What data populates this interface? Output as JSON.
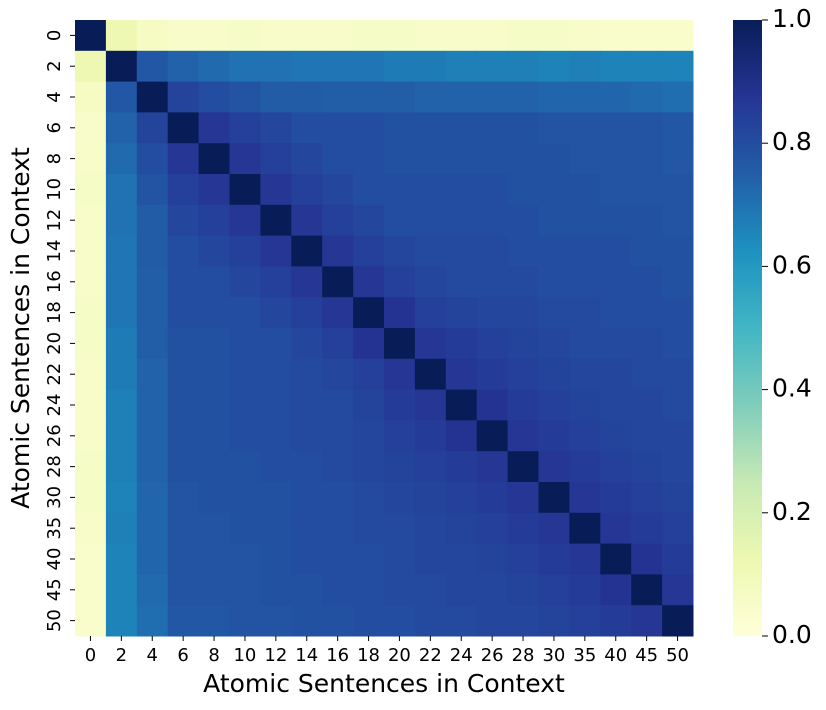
{
  "chart_data": {
    "type": "heatmap",
    "xlabel": "Atomic Sentences in Context",
    "ylabel": "Atomic Sentences in Context",
    "x_categories": [
      "0",
      "2",
      "4",
      "6",
      "8",
      "10",
      "12",
      "14",
      "16",
      "18",
      "20",
      "22",
      "24",
      "26",
      "28",
      "30",
      "35",
      "40",
      "45",
      "50"
    ],
    "y_categories": [
      "0",
      "2",
      "4",
      "6",
      "8",
      "10",
      "12",
      "14",
      "16",
      "18",
      "20",
      "22",
      "24",
      "26",
      "28",
      "30",
      "35",
      "40",
      "45",
      "50"
    ],
    "values": [
      [
        1.0,
        0.12,
        0.07,
        0.05,
        0.05,
        0.06,
        0.05,
        0.05,
        0.05,
        0.06,
        0.06,
        0.05,
        0.05,
        0.05,
        0.06,
        0.06,
        0.05,
        0.04,
        0.04,
        0.04
      ],
      [
        0.12,
        1.0,
        0.77,
        0.74,
        0.72,
        0.7,
        0.7,
        0.69,
        0.69,
        0.69,
        0.68,
        0.68,
        0.67,
        0.67,
        0.67,
        0.66,
        0.67,
        0.66,
        0.66,
        0.66
      ],
      [
        0.07,
        0.77,
        1.0,
        0.83,
        0.8,
        0.78,
        0.76,
        0.76,
        0.75,
        0.75,
        0.75,
        0.74,
        0.74,
        0.74,
        0.74,
        0.73,
        0.73,
        0.73,
        0.72,
        0.71
      ],
      [
        0.05,
        0.74,
        0.83,
        1.0,
        0.87,
        0.84,
        0.82,
        0.8,
        0.8,
        0.8,
        0.79,
        0.79,
        0.79,
        0.79,
        0.79,
        0.78,
        0.78,
        0.78,
        0.78,
        0.77
      ],
      [
        0.05,
        0.72,
        0.8,
        0.87,
        1.0,
        0.87,
        0.84,
        0.82,
        0.8,
        0.8,
        0.79,
        0.79,
        0.79,
        0.79,
        0.79,
        0.79,
        0.78,
        0.78,
        0.78,
        0.77
      ],
      [
        0.06,
        0.7,
        0.78,
        0.84,
        0.87,
        1.0,
        0.87,
        0.84,
        0.82,
        0.8,
        0.8,
        0.8,
        0.8,
        0.8,
        0.79,
        0.79,
        0.79,
        0.78,
        0.78,
        0.78
      ],
      [
        0.05,
        0.7,
        0.76,
        0.82,
        0.84,
        0.87,
        1.0,
        0.87,
        0.84,
        0.82,
        0.8,
        0.8,
        0.8,
        0.8,
        0.8,
        0.79,
        0.79,
        0.79,
        0.79,
        0.78
      ],
      [
        0.05,
        0.69,
        0.76,
        0.8,
        0.82,
        0.84,
        0.87,
        1.0,
        0.87,
        0.84,
        0.82,
        0.81,
        0.81,
        0.81,
        0.8,
        0.8,
        0.8,
        0.8,
        0.79,
        0.79
      ],
      [
        0.05,
        0.69,
        0.75,
        0.8,
        0.8,
        0.82,
        0.84,
        0.87,
        1.0,
        0.87,
        0.84,
        0.82,
        0.81,
        0.81,
        0.81,
        0.8,
        0.8,
        0.8,
        0.8,
        0.79
      ],
      [
        0.06,
        0.69,
        0.75,
        0.8,
        0.8,
        0.8,
        0.82,
        0.84,
        0.87,
        1.0,
        0.88,
        0.84,
        0.83,
        0.82,
        0.82,
        0.81,
        0.81,
        0.8,
        0.8,
        0.8
      ],
      [
        0.06,
        0.68,
        0.75,
        0.79,
        0.79,
        0.8,
        0.8,
        0.82,
        0.84,
        0.88,
        1.0,
        0.87,
        0.85,
        0.84,
        0.83,
        0.82,
        0.81,
        0.81,
        0.81,
        0.8
      ],
      [
        0.05,
        0.68,
        0.74,
        0.79,
        0.79,
        0.8,
        0.8,
        0.81,
        0.82,
        0.84,
        0.87,
        1.0,
        0.87,
        0.85,
        0.84,
        0.83,
        0.82,
        0.82,
        0.81,
        0.81
      ],
      [
        0.05,
        0.67,
        0.74,
        0.79,
        0.79,
        0.8,
        0.8,
        0.81,
        0.81,
        0.83,
        0.85,
        0.87,
        1.0,
        0.88,
        0.85,
        0.84,
        0.83,
        0.82,
        0.82,
        0.81
      ],
      [
        0.05,
        0.67,
        0.74,
        0.79,
        0.79,
        0.8,
        0.8,
        0.81,
        0.81,
        0.82,
        0.84,
        0.85,
        0.88,
        1.0,
        0.87,
        0.85,
        0.84,
        0.83,
        0.82,
        0.82
      ],
      [
        0.06,
        0.67,
        0.74,
        0.79,
        0.79,
        0.79,
        0.8,
        0.8,
        0.81,
        0.82,
        0.83,
        0.84,
        0.85,
        0.87,
        1.0,
        0.87,
        0.85,
        0.84,
        0.83,
        0.82
      ],
      [
        0.06,
        0.66,
        0.73,
        0.78,
        0.79,
        0.79,
        0.79,
        0.8,
        0.8,
        0.81,
        0.82,
        0.83,
        0.84,
        0.85,
        0.87,
        1.0,
        0.87,
        0.85,
        0.84,
        0.83
      ],
      [
        0.05,
        0.67,
        0.73,
        0.78,
        0.78,
        0.79,
        0.79,
        0.8,
        0.8,
        0.81,
        0.81,
        0.82,
        0.83,
        0.84,
        0.85,
        0.87,
        1.0,
        0.87,
        0.85,
        0.84
      ],
      [
        0.04,
        0.66,
        0.73,
        0.78,
        0.78,
        0.78,
        0.79,
        0.8,
        0.8,
        0.8,
        0.81,
        0.82,
        0.82,
        0.83,
        0.84,
        0.85,
        0.87,
        1.0,
        0.88,
        0.85
      ],
      [
        0.04,
        0.66,
        0.72,
        0.78,
        0.78,
        0.78,
        0.79,
        0.79,
        0.8,
        0.8,
        0.81,
        0.81,
        0.82,
        0.82,
        0.83,
        0.84,
        0.85,
        0.88,
        1.0,
        0.87
      ],
      [
        0.04,
        0.66,
        0.71,
        0.77,
        0.77,
        0.78,
        0.78,
        0.79,
        0.79,
        0.8,
        0.8,
        0.81,
        0.81,
        0.82,
        0.82,
        0.83,
        0.84,
        0.85,
        0.87,
        1.0
      ]
    ],
    "colorscale": [
      "#ffffd9",
      "#edf8b1",
      "#c7e9b4",
      "#7fcdbb",
      "#41b6c4",
      "#1d91c0",
      "#225ea8",
      "#253494",
      "#081d58"
    ],
    "clim": [
      0,
      1
    ],
    "cticks": [
      {
        "value": 0,
        "label": "0.0"
      },
      {
        "value": 0.2,
        "label": "0.2"
      },
      {
        "value": 0.4,
        "label": "0.4"
      },
      {
        "value": 0.6,
        "label": "0.6"
      },
      {
        "value": 0.8,
        "label": "0.8"
      },
      {
        "value": 1,
        "label": "1.0"
      }
    ]
  }
}
